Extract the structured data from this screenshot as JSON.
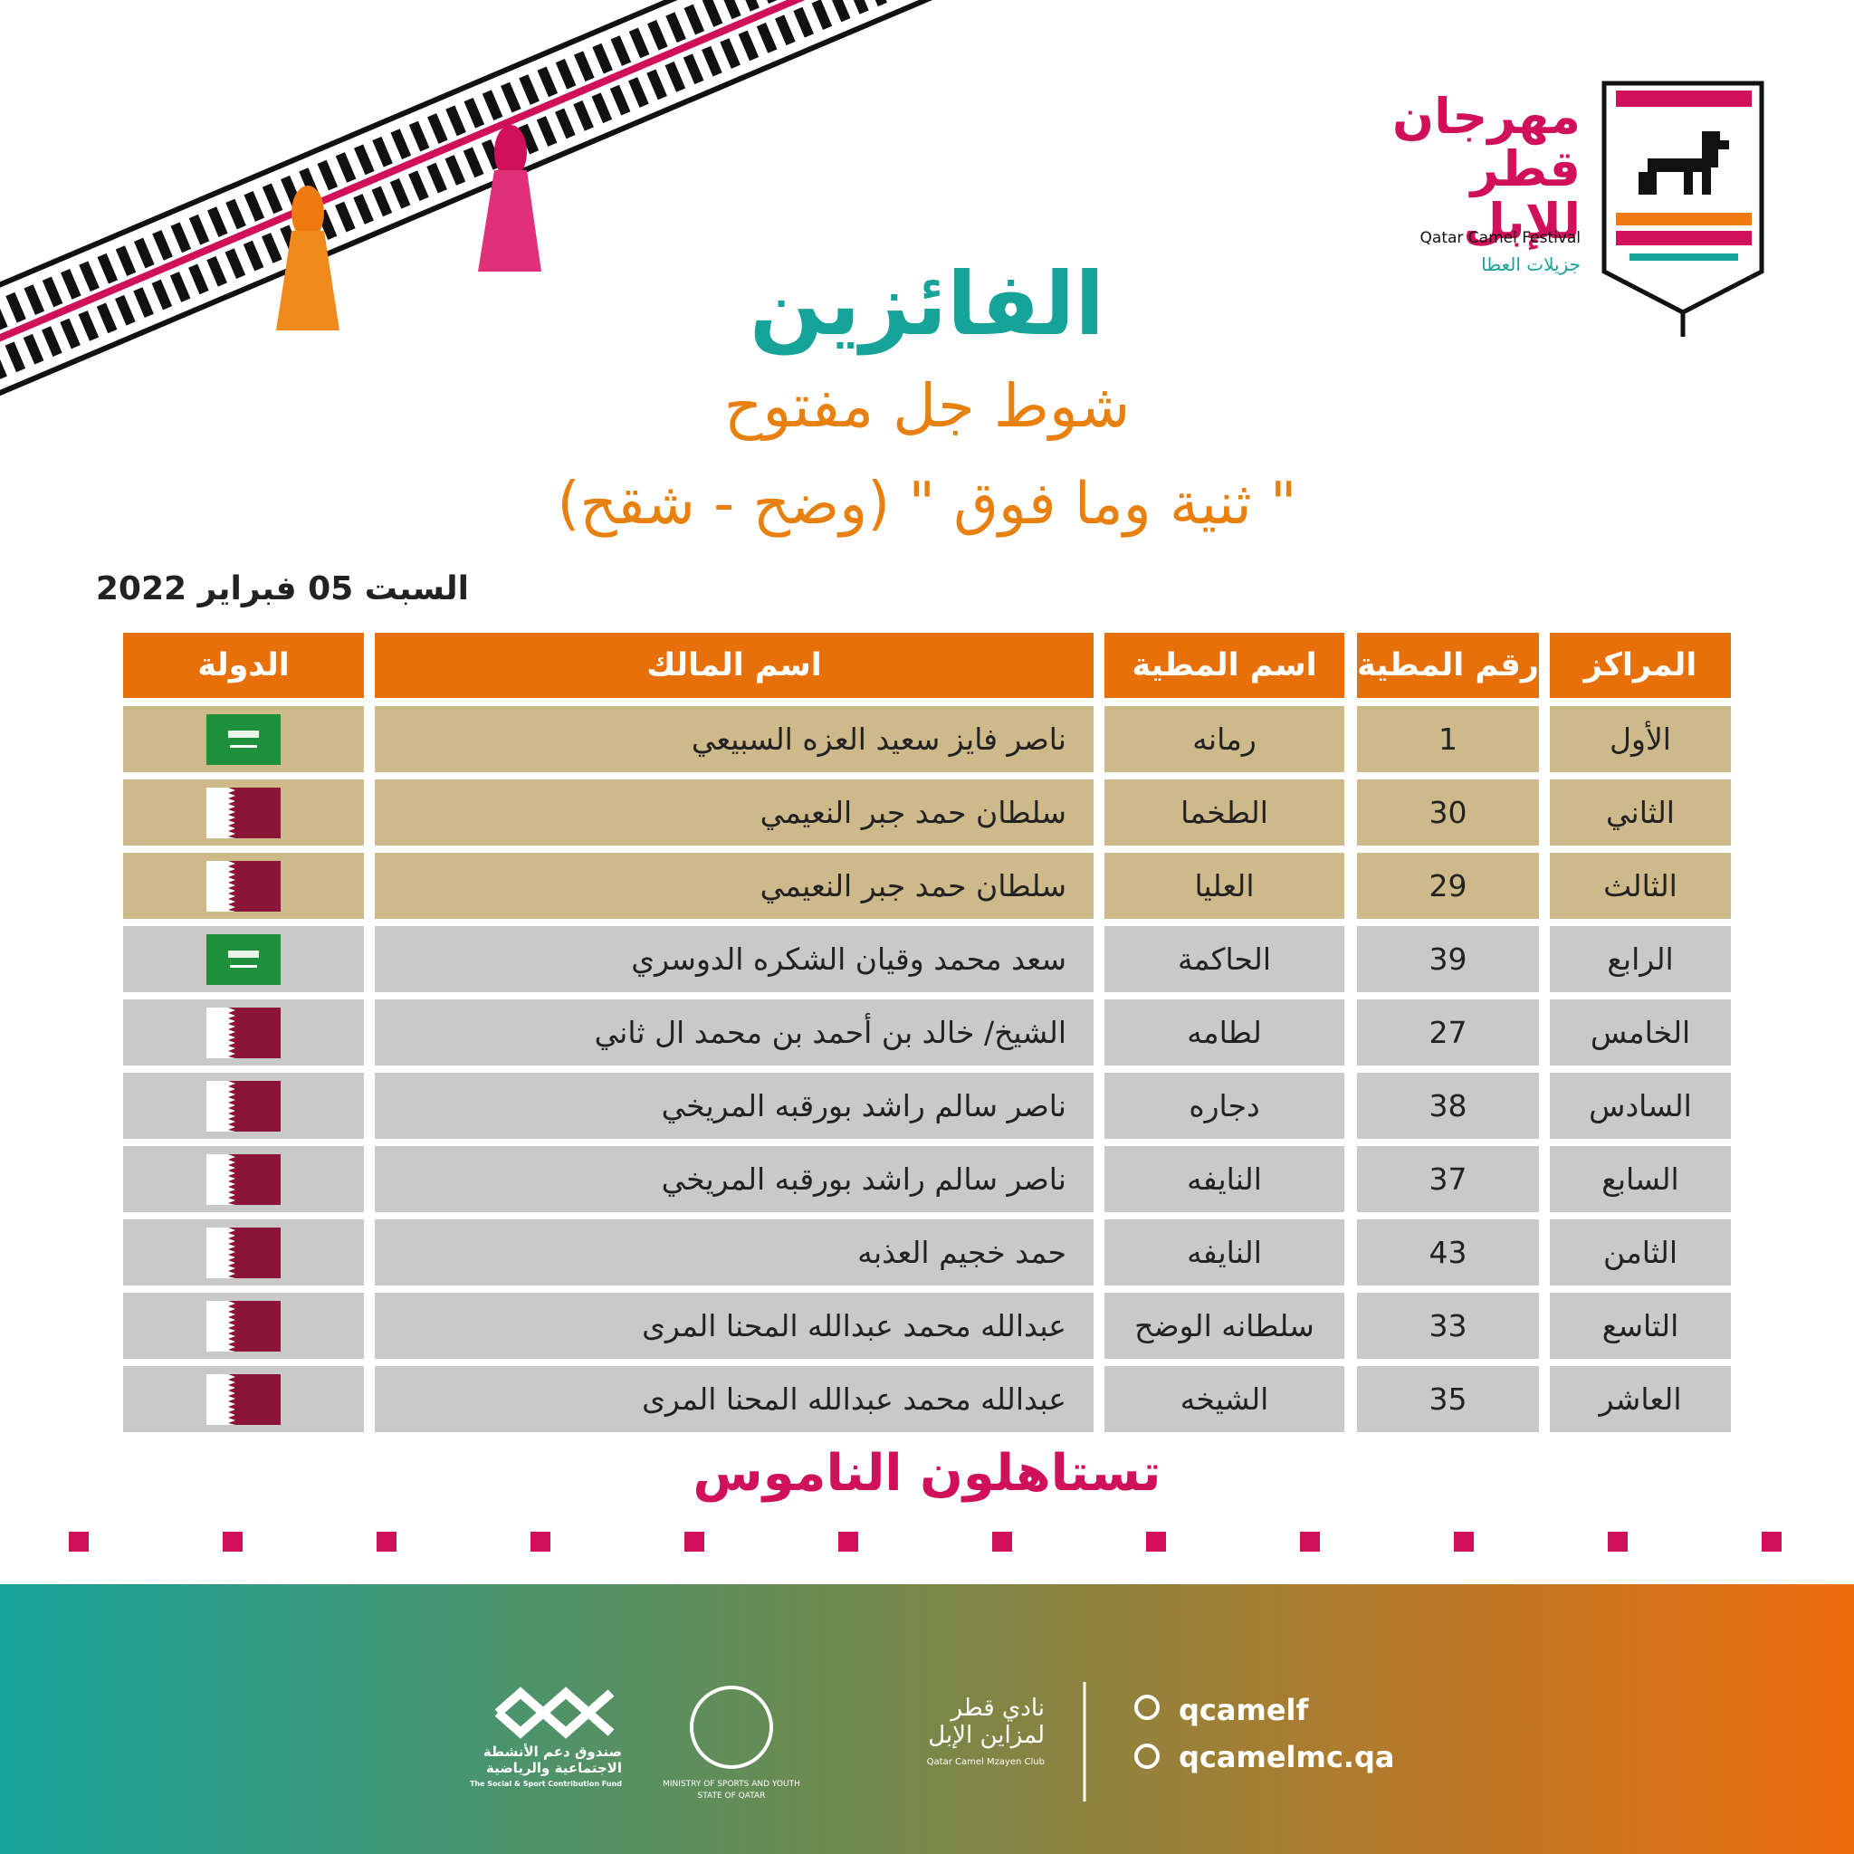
{
  "logo": {
    "lines": [
      "مهرجان",
      "قطر",
      "للإبل"
    ],
    "english": "Qatar Camel Festival",
    "tagline": "جزيلات العطا"
  },
  "title": "الفائزين",
  "subtitle": "شوط جل مفتوح",
  "category": "\" ثنية وما فوق \"  (وضح - شقح)",
  "date": "السبت 05 فبراير 2022",
  "table": {
    "headers": [
      "المراكز",
      "رقم المطية",
      "اسم المطية",
      "اسم المالك",
      "الدولة"
    ],
    "rows": [
      [
        "الأول",
        1,
        "رمانه",
        "ناصر فايز سعيد العزه السبيعي"
      ],
      [
        "الثاني",
        30,
        "الطخما",
        "سلطان حمد جبر النعيمي"
      ],
      [
        "الثالث",
        29,
        "العليا",
        "سلطان حمد جبر النعيمي"
      ],
      [
        "الرابع",
        39,
        "الحاكمة",
        "سعد محمد وقيان الشكره الدوسري"
      ],
      [
        "الخامس",
        27,
        "لطامه",
        "الشيخ/ خالد بن أحمد بن محمد ال ثاني"
      ],
      [
        "السادس",
        38,
        "دجاره",
        "ناصر سالم راشد بورقبه المريخي"
      ],
      [
        "السابع",
        37,
        "النايفه",
        "ناصر سالم راشد بورقبه المريخي"
      ],
      [
        "الثامن",
        43,
        "النايفه",
        "حمد خجيم العذبه"
      ],
      [
        "التاسع",
        33,
        "سلطانه الوضح",
        "عبدالله محمد عبدالله المحنا المرى"
      ],
      [
        "العاشر",
        35,
        "الشيخه",
        "عبدالله محمد عبدالله المحنا المرى"
      ]
    ],
    "flags": [
      "saudi",
      "qatar",
      "qatar",
      "saudi",
      "qatar",
      "qatar",
      "qatar",
      "qatar",
      "qatar",
      "qatar"
    ]
  },
  "slogan": "تستاهلون الناموس",
  "footer": {
    "social": "qcamelf",
    "website": "qcamelmc.qa",
    "sponsors": [
      {
        "lines": [
          "نادي قطر",
          "لمزاين الإبل"
        ],
        "english": "Qatar Camel Mzayen Club"
      },
      {
        "lines": [
          "MINISTRY OF SPORTS AND YOUTH",
          "STATE OF QATAR"
        ]
      },
      {
        "lines": [
          "صندوق دعم الأنشطة",
          "الاجتماعية والرياضية"
        ],
        "english": "The Social & Sport Contribution Fund"
      }
    ]
  }
}
